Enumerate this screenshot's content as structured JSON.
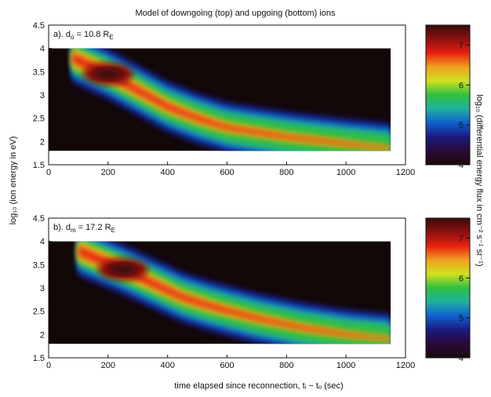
{
  "title": "Model of downgoing (top) and upgoing (bottom) ions",
  "xlabel": "time elapsed since reconnection, tᵢ − tₒ (sec)",
  "ylabel": "log₁₀ (ion energy in eV)",
  "colorbar_label": "log₁₀ (differential energy flux in cm⁻² s⁻¹ sr⁻¹)",
  "colormap": [
    "#1a0a0a",
    "#2a0a3a",
    "#1a1a80",
    "#1060d0",
    "#20b0a0",
    "#30c040",
    "#d0e020",
    "#f0a020",
    "#e82010",
    "#8b1010",
    "#3a0a0a"
  ],
  "chart_data": [
    {
      "type": "heatmap",
      "panel": "a",
      "label_prefix": "a). d",
      "label_sub": "o",
      "label_value": "= 10.8 R",
      "label_unit_sub": "E",
      "xlim": [
        0,
        1200
      ],
      "ylim": [
        1.5,
        4.5
      ],
      "xticks": [
        "0",
        "200",
        "400",
        "600",
        "800",
        "1000",
        "1200"
      ],
      "yticks": [
        "1.5",
        "2",
        "2.5",
        "3",
        "3.5",
        "4",
        "4.5"
      ],
      "data_extent": {
        "x": [
          0,
          1150
        ],
        "y": [
          1.8,
          4.0
        ]
      },
      "peak_ridge": [
        [
          80,
          3.8
        ],
        [
          200,
          3.45
        ],
        [
          300,
          3.1
        ],
        [
          400,
          2.75
        ],
        [
          500,
          2.5
        ],
        [
          600,
          2.3
        ],
        [
          800,
          2.1
        ],
        [
          1000,
          1.95
        ],
        [
          1150,
          1.85
        ]
      ],
      "peak_log_flux": 7.1,
      "colorbar": {
        "range": [
          4,
          7.5
        ],
        "ticks": [
          "4",
          "5",
          "6",
          "7"
        ]
      }
    },
    {
      "type": "heatmap",
      "panel": "b",
      "label_prefix": "b). d",
      "label_sub": "m",
      "label_value": "= 17.2 R",
      "label_unit_sub": "E",
      "xlim": [
        0,
        1200
      ],
      "ylim": [
        1.5,
        4.5
      ],
      "xticks": [
        "0",
        "200",
        "400",
        "600",
        "800",
        "1000",
        "1200"
      ],
      "yticks": [
        "1.5",
        "2",
        "2.5",
        "3",
        "3.5",
        "4",
        "4.5"
      ],
      "data_extent": {
        "x": [
          0,
          1150
        ],
        "y": [
          1.8,
          4.0
        ]
      },
      "peak_ridge": [
        [
          100,
          3.8
        ],
        [
          250,
          3.4
        ],
        [
          350,
          3.1
        ],
        [
          450,
          2.8
        ],
        [
          550,
          2.6
        ],
        [
          700,
          2.35
        ],
        [
          850,
          2.15
        ],
        [
          1000,
          2.0
        ],
        [
          1150,
          1.9
        ]
      ],
      "peak_log_flux": 7.2,
      "colorbar": {
        "range": [
          4,
          7.5
        ],
        "ticks": [
          "4",
          "5",
          "6",
          "7"
        ]
      }
    }
  ]
}
